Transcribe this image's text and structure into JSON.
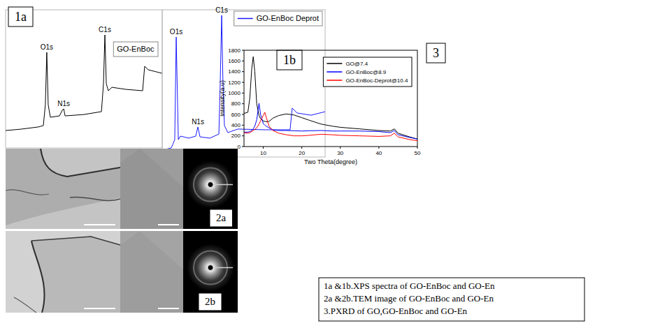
{
  "chart_data": [
    {
      "type": "line",
      "label": "1a",
      "legend": "upper right",
      "tick_labels": false,
      "xlim": [
        0,
        100
      ],
      "ylim": [
        0,
        100
      ],
      "x": [
        0,
        9.8,
        21,
        24.1,
        25.4,
        26.3,
        27.2,
        28.6,
        34.4,
        36.2,
        37.1,
        38,
        50,
        61.2,
        62.5,
        63.4,
        64.3,
        65.6,
        67.9,
        76.8,
        87.5,
        88.8,
        91,
        100
      ],
      "series": [
        {
          "name": "GO-EnBoc",
          "color": "#000000",
          "values": [
            12.6,
            13.6,
            15.2,
            16.2,
            31.3,
            69.2,
            31.3,
            22.2,
            23.2,
            27.3,
            28.3,
            23.2,
            24.2,
            26.3,
            46.5,
            81.8,
            46.5,
            41.4,
            43.9,
            42.4,
            41.4,
            59.1,
            56.6,
            54
          ]
        }
      ],
      "annotations": [
        {
          "text": "O1s",
          "x": 26.3,
          "y": 69.2
        },
        {
          "text": "N1s",
          "x": 37.1,
          "y": 28.3
        },
        {
          "text": "C1s",
          "x": 63.4,
          "y": 81.8
        }
      ]
    },
    {
      "type": "line",
      "label": "1b",
      "legend": "upper right",
      "tick_labels": false,
      "xlim": [
        0,
        100
      ],
      "ylim": [
        0,
        100
      ],
      "x": [
        0,
        5.6,
        7.7,
        8.6,
        9.9,
        11.2,
        16.3,
        20.6,
        21.9,
        23.2,
        29.2,
        34.8,
        35.6,
        36.5,
        37.3,
        38.2,
        40.3,
        46.4,
        63.5,
        78.5,
        79.8,
        82.8,
        91.4,
        100
      ],
      "series": [
        {
          "name": "GO-EnBoc Deprot",
          "color": "#1a1aff",
          "values": [
            4.7,
            6.2,
            11.8,
            81.5,
            11.8,
            14.2,
            12.8,
            14.2,
            20.4,
            13.7,
            12.8,
            15.6,
            49.8,
            96.2,
            49.8,
            21.3,
            16.6,
            19,
            18.5,
            18.5,
            33.2,
            29.9,
            28.4,
            30.8
          ]
        }
      ],
      "annotations": [
        {
          "text": "O1s",
          "x": 8.6,
          "y": 81.5
        },
        {
          "text": "N1s",
          "x": 21.9,
          "y": 20.4
        },
        {
          "text": "C1s",
          "x": 36.5,
          "y": 96.2
        }
      ]
    },
    {
      "type": "line",
      "label": "3",
      "x_label": "Two Theta(degree)",
      "y_label": "Intensity(a.u)",
      "legend": "upper right",
      "xlim": [
        5,
        50
      ],
      "ylim": [
        0,
        1800
      ],
      "xticks": [
        10,
        20,
        30,
        40,
        50
      ],
      "yticks": [
        0,
        200,
        400,
        600,
        800,
        1000,
        1200,
        1400,
        1600,
        1800
      ],
      "x": [
        5,
        6,
        6.5,
        7,
        7.4,
        7.8,
        8.3,
        8.9,
        9.3,
        10,
        10.4,
        10.8,
        11.5,
        12.5,
        14,
        16,
        18,
        20,
        22,
        25,
        28,
        30,
        35,
        40,
        43,
        44,
        45,
        48,
        50
      ],
      "series": [
        {
          "name": "GO@7.4",
          "color": "#000000",
          "values": [
            620,
            640,
            900,
            1450,
            1680,
            1400,
            800,
            580,
            520,
            480,
            470,
            465,
            470,
            530,
            580,
            610,
            590,
            540,
            490,
            420,
            380,
            360,
            330,
            300,
            290,
            330,
            250,
            180,
            140
          ]
        },
        {
          "name": "GO-EnBoc@8.9",
          "color": "#0000ff",
          "values": [
            270,
            270,
            280,
            300,
            330,
            380,
            500,
            810,
            600,
            430,
            400,
            380,
            350,
            310,
            300,
            300,
            295,
            290,
            295,
            300,
            290,
            290,
            290,
            280,
            260,
            300,
            220,
            170,
            140
          ]
        },
        {
          "name": "GO-EnBoc-Deprot@10.4",
          "color": "#ff0000",
          "values": [
            260,
            250,
            260,
            280,
            300,
            320,
            350,
            420,
            480,
            580,
            640,
            540,
            380,
            300,
            250,
            220,
            200,
            200,
            210,
            230,
            220,
            210,
            200,
            190,
            200,
            250,
            180,
            130,
            110
          ]
        }
      ]
    }
  ],
  "images": [
    {
      "label": "2a"
    },
    {
      "label": "2b"
    }
  ],
  "caption": [
    "1a &1b.XPS spectra of GO-EnBoc and GO-En",
    "2a &2b.TEM image of GO-EnBoc and GO-En",
    "3.PXRD of GO,GO-EnBoc and GO-En"
  ]
}
